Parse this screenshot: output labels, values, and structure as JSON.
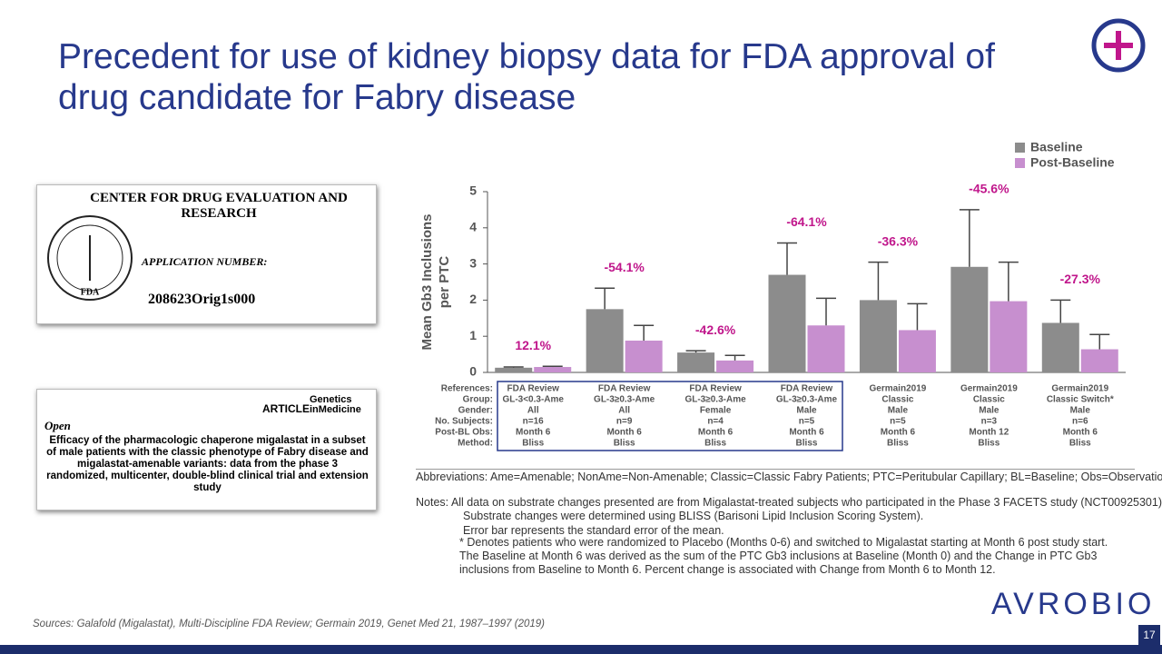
{
  "title": "Precedent for use of kidney biopsy data for FDA approval of drug candidate for Fabry disease",
  "documents": [
    {
      "heading": "CENTER FOR DRUG EVALUATION AND RESEARCH",
      "seal": "FDA",
      "field": "APPLICATION NUMBER:",
      "number": "208623Orig1s000"
    },
    {
      "journal_type": "ARTICLE",
      "journal": "Genetics inMedicine",
      "access": "Open",
      "heading": "Efficacy of the pharmacologic chaperone migalastat in a subset of male patients with the classic phenotype of Fabry disease and migalastat-amenable variants: data from the phase 3 randomized, multicenter, double-blind clinical trial and extension study"
    }
  ],
  "chart_data": {
    "type": "bar",
    "ylabel": [
      "Mean Gb3 Inclusions",
      "per PTC"
    ],
    "ylim": [
      0,
      5
    ],
    "yticks": [
      0,
      1,
      2,
      3,
      4,
      5
    ],
    "legend": "top-right",
    "series": [
      {
        "name": "Baseline",
        "color": "#8c8c8c",
        "values": [
          0.13,
          1.75,
          0.55,
          2.7,
          2.0,
          2.92,
          1.37
        ],
        "errors": [
          0.02,
          0.58,
          0.05,
          0.88,
          1.05,
          1.58,
          0.63
        ]
      },
      {
        "name": "Post-Baseline",
        "color": "#c78fcf",
        "values": [
          0.15,
          0.88,
          0.33,
          1.3,
          1.17,
          1.97,
          0.64
        ],
        "errors": [
          0.02,
          0.42,
          0.14,
          0.75,
          0.73,
          1.08,
          0.41
        ]
      }
    ],
    "annotations": [
      "12.1%",
      "-54.1%",
      "-42.6%",
      "-64.1%",
      "-36.3%",
      "-45.6%",
      "-27.3%"
    ],
    "table": {
      "row_labels": [
        "References:",
        "Group:",
        "Gender:",
        "No. Subjects:",
        "Post-BL Obs:",
        "Method:"
      ],
      "columns": [
        [
          "FDA Review",
          "GL-3<0.3-Ame",
          "All",
          "n=16",
          "Month 6",
          "Bliss"
        ],
        [
          "FDA Review",
          "GL-3≥0.3-Ame",
          "All",
          "n=9",
          "Month 6",
          "Bliss"
        ],
        [
          "FDA Review",
          "GL-3≥0.3-Ame",
          "Female",
          "n=4",
          "Month 6",
          "Bliss"
        ],
        [
          "FDA Review",
          "GL-3≥0.3-Ame",
          "Male",
          "n=5",
          "Month 6",
          "Bliss"
        ],
        [
          "Germain2019",
          "Classic",
          "Male",
          "n=5",
          "Month 6",
          "Bliss"
        ],
        [
          "Germain2019",
          "Classic",
          "Male",
          "n=3",
          "Month 12",
          "Bliss"
        ],
        [
          "Germain2019",
          "Classic Switch*",
          "Male",
          "n=6",
          "Month 6",
          "Bliss"
        ]
      ]
    }
  },
  "notes": [
    {
      "lead": "Abbreviations:",
      "text": "Ame=Amenable; NonAme=Non-Amenable; Classic=Classic Fabry Patients; PTC=Peritubular Capillary; BL=Baseline; Obs=Observation."
    },
    {
      "lead": "Notes:",
      "text": "All data on substrate changes presented are from Migalastat-treated subjects who participated in the Phase 3 FACETS study (NCT00925301). Substrate changes were determined using BLISS (Barisoni Lipid Inclusion Scoring System)."
    },
    {
      "text": "Error bar represents the standard error of the mean."
    },
    {
      "text": "* Denotes patients who were randomized to Placebo (Months 0-6) and switched to Migalastat starting at Month 6 post study start. The Baseline at Month 6 was derived as the sum of the PTC Gb3 inclusions at Baseline (Month 0) and the Change in PTC Gb3 inclusions from Baseline to Month 6. Percent change is associated with Change from Month 6 to Month 12."
    }
  ],
  "sources": "Sources: Galafold (Migalastat), Multi-Discipline FDA Review; Germain 2019, Genet Med 21, 1987–1997 (2019)",
  "logo": "AVROBIO",
  "page_number": "17"
}
